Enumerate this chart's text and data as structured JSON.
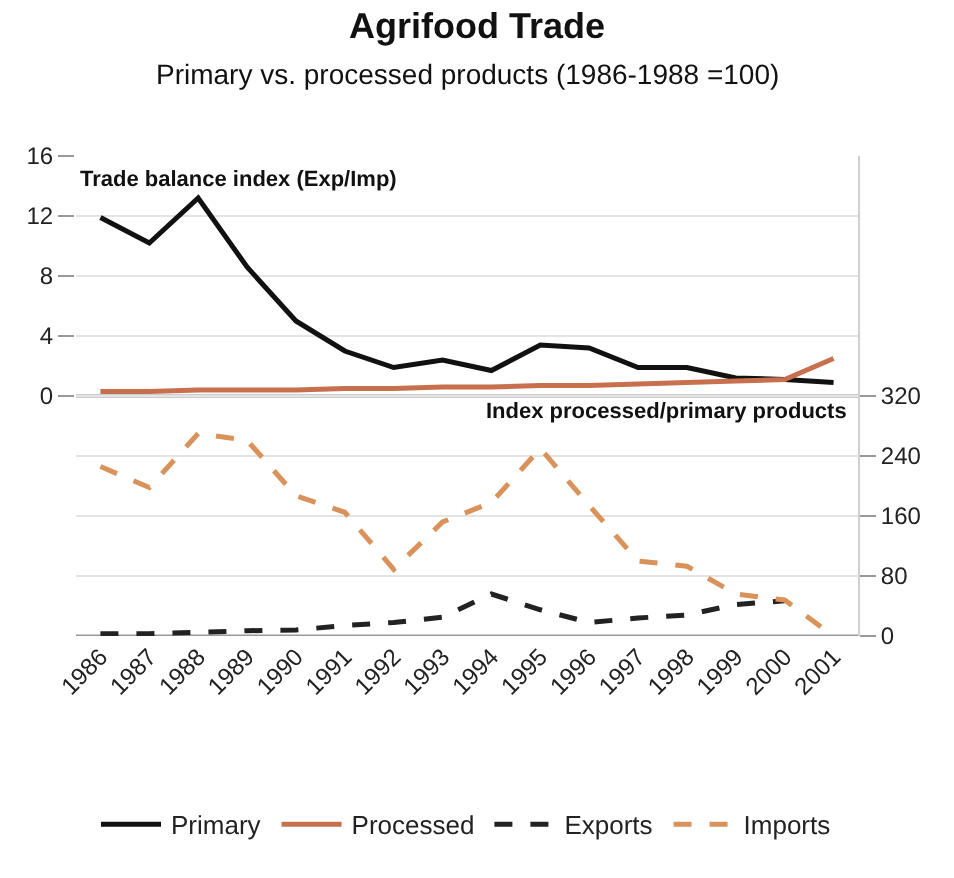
{
  "chart_data": {
    "type": "line",
    "title": "Agrifood Trade",
    "subtitle": "Primary vs. processed products (1986-1988 =100)",
    "ylabel": "Trade balance index (Exp/Imp)",
    "y2label": "Index processed/primary products",
    "categories": [
      "1986",
      "1987",
      "1988",
      "1989",
      "1990",
      "1991",
      "1992",
      "1993",
      "1994",
      "1995",
      "1996",
      "1997",
      "1998",
      "1999",
      "2000",
      "2001"
    ],
    "series": [
      {
        "name": "Primary",
        "color": "#111111",
        "line_style": "solid",
        "values": [
          11.9,
          10.2,
          13.2,
          8.6,
          5.0,
          3.0,
          1.9,
          2.4,
          1.7,
          3.4,
          3.2,
          1.9,
          1.9,
          1.2,
          1.1,
          0.9
        ]
      },
      {
        "name": "Processed",
        "color": "#c8704e",
        "line_style": "solid",
        "values": [
          0.3,
          0.3,
          0.4,
          0.4,
          0.4,
          0.5,
          0.5,
          0.6,
          0.6,
          0.7,
          0.7,
          0.8,
          0.9,
          1.0,
          1.1,
          2.5
        ]
      },
      {
        "name": "Exports",
        "color": "#222222",
        "line_style": "dashed",
        "axis": "y2",
        "values": [
          3,
          3,
          5,
          7,
          8,
          14,
          18,
          25,
          56,
          35,
          18,
          24,
          28,
          42,
          47,
          null
        ]
      },
      {
        "name": "Imports",
        "color": "#d9925a",
        "line_style": "dashed",
        "axis": "y2",
        "values": [
          226,
          198,
          270,
          261,
          187,
          165,
          89,
          152,
          178,
          250,
          174,
          100,
          93,
          56,
          48,
          0
        ]
      }
    ],
    "ylim": [
      -16,
      16
    ],
    "yticks": [
      0,
      4,
      8,
      12,
      16
    ],
    "y2lim": [
      0,
      640
    ],
    "y2ticks": [
      0,
      80,
      160,
      240,
      320
    ],
    "grid": "y",
    "legend": "bottom",
    "marker": "none"
  }
}
